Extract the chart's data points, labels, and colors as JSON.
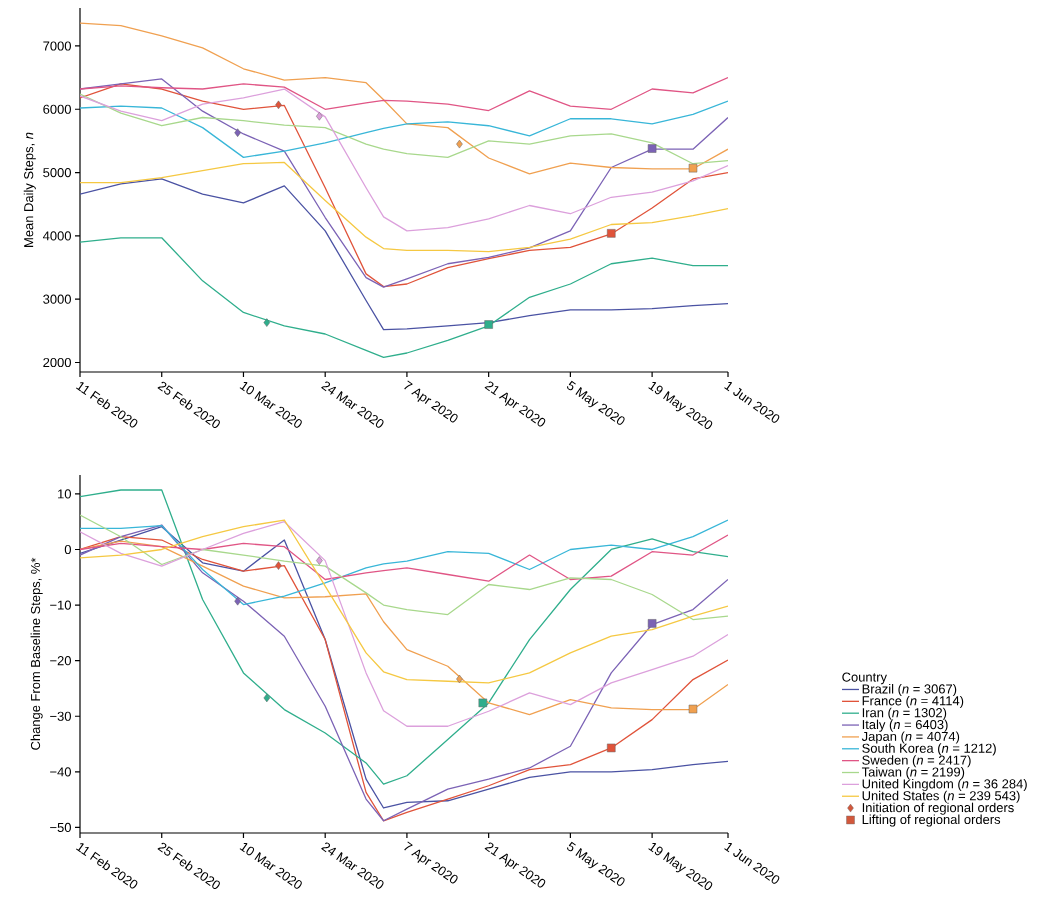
{
  "chart_data": [
    {
      "type": "line",
      "ylabel": "Mean Daily Steps, *n*",
      "x": [
        "2020-02-11",
        "2020-02-18",
        "2020-02-25",
        "2020-03-03",
        "2020-03-10",
        "2020-03-17",
        "2020-03-24",
        "2020-03-31",
        "2020-04-03",
        "2020-04-07",
        "2020-04-14",
        "2020-04-21",
        "2020-04-28",
        "2020-05-05",
        "2020-05-12",
        "2020-05-19",
        "2020-05-26",
        "2020-06-01"
      ],
      "xlim": [
        "2020-02-11",
        "2020-06-01"
      ],
      "xticks": [
        {
          "value": "2020-02-11",
          "label": "11 Feb 2020"
        },
        {
          "value": "2020-02-25",
          "label": "25 Feb 2020"
        },
        {
          "value": "2020-03-10",
          "label": "10 Mar 2020"
        },
        {
          "value": "2020-03-24",
          "label": "24 Mar 2020"
        },
        {
          "value": "2020-04-07",
          "label": "7 Apr 2020"
        },
        {
          "value": "2020-04-21",
          "label": "21 Apr 2020"
        },
        {
          "value": "2020-05-05",
          "label": "5 May 2020"
        },
        {
          "value": "2020-05-19",
          "label": "19 May 2020"
        },
        {
          "value": "2020-06-01",
          "label": "1 Jun 2020"
        }
      ],
      "ylim": [
        1850,
        7600
      ],
      "yticks": [
        2000,
        3000,
        4000,
        5000,
        6000,
        7000
      ],
      "series": [
        {
          "color": "#4a52a3",
          "values": [
            4660,
            4820,
            4900,
            4660,
            4520,
            4790,
            4080,
            2980,
            2520,
            2530,
            2580,
            2630,
            2740,
            2830,
            2830,
            2850,
            2900,
            2930
          ]
        },
        {
          "color": "#e0533a",
          "values": [
            6180,
            6400,
            6320,
            6130,
            6000,
            6060,
            4760,
            3400,
            3200,
            3240,
            3500,
            3640,
            3770,
            3820,
            4030,
            4440,
            4900,
            5000
          ]
        },
        {
          "color": "#2fae8c",
          "values": [
            3900,
            3970,
            3970,
            3290,
            2790,
            2580,
            2450,
            2190,
            2080,
            2150,
            2350,
            2580,
            3030,
            3240,
            3560,
            3650,
            3530,
            3530
          ]
        },
        {
          "color": "#7b62b5",
          "values": [
            6320,
            6400,
            6480,
            5970,
            5610,
            5340,
            4290,
            3340,
            3190,
            3320,
            3560,
            3660,
            3810,
            4080,
            5080,
            5370,
            5370,
            5870
          ]
        },
        {
          "color": "#f0a050",
          "values": [
            7360,
            7320,
            7160,
            6970,
            6640,
            6460,
            6500,
            6420,
            6150,
            5770,
            5710,
            5230,
            4980,
            5150,
            5080,
            5060,
            5060,
            5370
          ]
        },
        {
          "color": "#38b6d8",
          "values": [
            6020,
            6050,
            6020,
            5710,
            5240,
            5340,
            5470,
            5630,
            5700,
            5770,
            5800,
            5740,
            5580,
            5850,
            5850,
            5770,
            5920,
            6130
          ]
        },
        {
          "color": "#e05585",
          "values": [
            6320,
            6370,
            6340,
            6320,
            6400,
            6350,
            6000,
            6100,
            6140,
            6130,
            6080,
            5980,
            6290,
            6050,
            6000,
            6320,
            6260,
            6500
          ]
        },
        {
          "color": "#a8d88c",
          "values": [
            6240,
            5940,
            5740,
            5870,
            5820,
            5750,
            5710,
            5450,
            5370,
            5300,
            5240,
            5500,
            5450,
            5580,
            5610,
            5470,
            5140,
            5190
          ]
        },
        {
          "color": "#dca0dc",
          "values": [
            6210,
            5970,
            5820,
            6080,
            6180,
            6320,
            5880,
            4760,
            4300,
            4080,
            4130,
            4270,
            4480,
            4350,
            4610,
            4690,
            4870,
            5110
          ]
        },
        {
          "color": "#f5c842",
          "values": [
            4840,
            4840,
            4920,
            5030,
            5140,
            5160,
            4560,
            3980,
            3800,
            3770,
            3770,
            3750,
            3820,
            3950,
            4180,
            4210,
            4320,
            4430
          ]
        },
        {
          "type": "scatter",
          "marker": "diamond",
          "x": [
            "2020-03-09",
            "2020-03-14",
            "2020-03-16",
            "2020-03-23",
            "2020-04-16"
          ],
          "values": [
            5630,
            2630,
            6070,
            5890,
            5450
          ],
          "colors": [
            "#7b62b5",
            "#2fae8c",
            "#e0533a",
            "#dca0dc",
            "#f0a050"
          ]
        },
        {
          "type": "scatter",
          "marker": "square",
          "x": [
            "2020-04-21",
            "2020-05-12",
            "2020-05-19",
            "2020-05-26"
          ],
          "values": [
            2600,
            4040,
            5380,
            5070
          ],
          "colors": [
            "#2fae8c",
            "#e0533a",
            "#7b62b5",
            "#f0a050"
          ]
        }
      ]
    },
    {
      "type": "line",
      "ylabel": "Change From Baseline Steps, %*",
      "legend": "right",
      "legend_title": "Country",
      "x": [
        "2020-02-11",
        "2020-02-18",
        "2020-02-25",
        "2020-03-03",
        "2020-03-10",
        "2020-03-17",
        "2020-03-24",
        "2020-03-31",
        "2020-04-03",
        "2020-04-07",
        "2020-04-14",
        "2020-04-21",
        "2020-04-28",
        "2020-05-05",
        "2020-05-12",
        "2020-05-19",
        "2020-05-26",
        "2020-06-01"
      ],
      "xlim": [
        "2020-02-11",
        "2020-06-01"
      ],
      "xticks": [
        {
          "value": "2020-02-11",
          "label": "11 Feb 2020"
        },
        {
          "value": "2020-02-25",
          "label": "25 Feb 2020"
        },
        {
          "value": "2020-03-10",
          "label": "10 Mar 2020"
        },
        {
          "value": "2020-03-24",
          "label": "24 Mar 2020"
        },
        {
          "value": "2020-04-07",
          "label": "7 Apr 2020"
        },
        {
          "value": "2020-04-21",
          "label": "21 Apr 2020"
        },
        {
          "value": "2020-05-05",
          "label": "5 May 2020"
        },
        {
          "value": "2020-05-19",
          "label": "19 May 2020"
        },
        {
          "value": "2020-06-01",
          "label": "1 Jun 2020"
        }
      ],
      "ylim": [
        -51,
        13.4
      ],
      "yticks": [
        {
          "value": -50,
          "label": "−50"
        },
        {
          "value": -40,
          "label": "−40"
        },
        {
          "value": -30,
          "label": "−30"
        },
        {
          "value": -20,
          "label": "−20"
        },
        {
          "value": -10,
          "label": "−10"
        },
        0,
        10
      ],
      "series": [
        {
          "name": "Brazil (*n* = 3067)",
          "color": "#4a52a3",
          "values": [
            -0.7,
            1.7,
            4.1,
            -2.4,
            -3.9,
            1.7,
            -16.2,
            -41.3,
            -46.5,
            -45.5,
            -45.2,
            -43.1,
            -41,
            -40,
            -40,
            -39.6,
            -38.7,
            -38.1
          ]
        },
        {
          "name": "France (*n* = 4114)",
          "color": "#e0533a",
          "values": [
            0,
            2.3,
            1.7,
            -1.8,
            -3.9,
            -2.9,
            -16.2,
            -43.7,
            -48.8,
            -47.3,
            -44.9,
            -42.5,
            -39.6,
            -38.7,
            -35.7,
            -30.6,
            -23.4,
            -19.9
          ]
        },
        {
          "name": "Iran (*n* = 1302)",
          "color": "#2fae8c",
          "values": [
            9.5,
            10.7,
            10.7,
            -9,
            -22.2,
            -28.8,
            -33,
            -38.4,
            -42.2,
            -40.7,
            -34.2,
            -27.6,
            -16.2,
            -7.2,
            0,
            1.9,
            -0.4,
            -1.3
          ]
        },
        {
          "name": "Italy (*n* = 6403)",
          "color": "#7b62b5",
          "values": [
            -1,
            2.3,
            4.4,
            -4.2,
            -9.3,
            -15.6,
            -28.2,
            -44.9,
            -48.8,
            -46.7,
            -43.1,
            -41.3,
            -39.3,
            -35.4,
            -22.2,
            -13.5,
            -10.8,
            -5.4
          ]
        },
        {
          "name": "Japan (*n* = 4074)",
          "color": "#f0a050",
          "values": [
            0,
            1.5,
            0.5,
            -3,
            -6.6,
            -8.7,
            -8.5,
            -8,
            -13,
            -18,
            -21,
            -27.6,
            -29.7,
            -27,
            -28.5,
            -28.8,
            -28.8,
            -24.3
          ]
        },
        {
          "name": "South Korea (*n* = 1212)",
          "color": "#38b6d8",
          "values": [
            3.8,
            3.8,
            4.3,
            -3.6,
            -9.9,
            -8.4,
            -6,
            -3.3,
            -2.6,
            -2.1,
            -0.4,
            -0.7,
            -3.6,
            0,
            0.8,
            0,
            2.3,
            5.3
          ]
        },
        {
          "name": "Sweden (*n* = 2417)",
          "color": "#e05585",
          "values": [
            0,
            1.1,
            0.5,
            0,
            1.1,
            0.5,
            -5.4,
            -4.2,
            -3.8,
            -3.3,
            -4.5,
            -5.7,
            -1,
            -5.4,
            -4.8,
            -0.4,
            -1,
            2.6
          ]
        },
        {
          "name": "Taiwan (*n* = 2199)",
          "color": "#a8d88c",
          "values": [
            6.2,
            2.3,
            -2.7,
            0,
            -1,
            -2.1,
            -3,
            -7.8,
            -10,
            -10.8,
            -11.7,
            -6.3,
            -7.2,
            -5.1,
            -5.4,
            -8.1,
            -12.6,
            -12
          ]
        },
        {
          "name": "United Kingdom (*n* = 36 284)",
          "color": "#dca0dc",
          "values": [
            3.2,
            -0.7,
            -3,
            0,
            2.9,
            5,
            -2,
            -22.2,
            -29,
            -31.8,
            -31.8,
            -29.1,
            -25.8,
            -27.9,
            -24,
            -21.6,
            -19.2,
            -15.3
          ]
        },
        {
          "name": "United States (*n* = 239 543)",
          "color": "#f5c842",
          "values": [
            -1.5,
            -1,
            0,
            2.3,
            4.1,
            5.3,
            -6.6,
            -18.6,
            -22,
            -23.4,
            -23.7,
            -24,
            -22.2,
            -18.6,
            -15.6,
            -14.4,
            -12,
            -10.2
          ]
        },
        {
          "name": "Initiation of regional orders",
          "type": "scatter",
          "marker": "diamond",
          "color": "#d2583c",
          "x": [
            "2020-03-09",
            "2020-03-14",
            "2020-03-16",
            "2020-03-23",
            "2020-04-16"
          ],
          "values": [
            -9.3,
            -26.7,
            -2.9,
            -2,
            -23.3
          ],
          "colors": [
            "#7b62b5",
            "#2fae8c",
            "#e0533a",
            "#dca0dc",
            "#f0a050"
          ]
        },
        {
          "name": "Lifting of regional orders",
          "type": "scatter",
          "marker": "square",
          "color": "#d2583c",
          "x": [
            "2020-04-20",
            "2020-05-12",
            "2020-05-19",
            "2020-05-26"
          ],
          "values": [
            -27.6,
            -35.7,
            -13.3,
            -28.7
          ],
          "colors": [
            "#2fae8c",
            "#e0533a",
            "#7b62b5",
            "#f0a050"
          ]
        }
      ]
    }
  ]
}
